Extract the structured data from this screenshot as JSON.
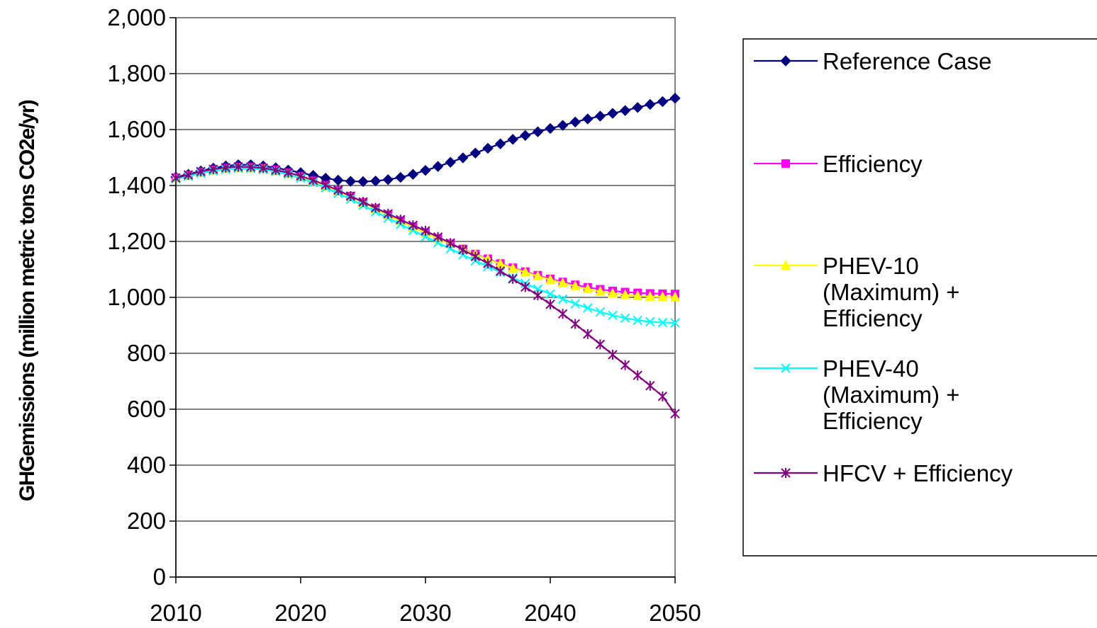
{
  "chart_data": {
    "type": "line",
    "title": "",
    "xlabel": "",
    "ylabel": "GHGemissions (million metric tons CO2e/yr)",
    "xlim": [
      2010,
      2050
    ],
    "ylim": [
      0,
      2000
    ],
    "x_ticks": [
      "2010",
      "2020",
      "2030",
      "2040",
      "2050"
    ],
    "y_ticks": [
      "0",
      "200",
      "400",
      "600",
      "800",
      "1,000",
      "1,200",
      "1,400",
      "1,600",
      "1,800",
      "2,000"
    ],
    "grid": "horizontal",
    "legend": "right",
    "x": [
      2010,
      2011,
      2012,
      2013,
      2014,
      2015,
      2016,
      2017,
      2018,
      2019,
      2020,
      2021,
      2022,
      2023,
      2024,
      2025,
      2026,
      2027,
      2028,
      2029,
      2030,
      2031,
      2032,
      2033,
      2034,
      2035,
      2036,
      2037,
      2038,
      2039,
      2040,
      2041,
      2042,
      2043,
      2044,
      2045,
      2046,
      2047,
      2048,
      2049,
      2050
    ],
    "series": [
      {
        "name": "Reference Case",
        "legend_lines": [
          "Reference Case"
        ],
        "color": "#000080",
        "marker": "diamond",
        "values": [
          1430,
          1440,
          1452,
          1462,
          1470,
          1474,
          1474,
          1470,
          1463,
          1455,
          1446,
          1436,
          1426,
          1419,
          1415,
          1414,
          1416,
          1421,
          1429,
          1440,
          1454,
          1468,
          1483,
          1499,
          1516,
          1533,
          1549,
          1565,
          1579,
          1592,
          1604,
          1615,
          1627,
          1638,
          1648,
          1658,
          1668,
          1679,
          1690,
          1700,
          1712
        ]
      },
      {
        "name": "Efficiency",
        "legend_lines": [
          "Efficiency"
        ],
        "color": "#FF00FF",
        "marker": "square",
        "values": [
          1428,
          1437,
          1448,
          1456,
          1462,
          1466,
          1466,
          1463,
          1456,
          1446,
          1433,
          1418,
          1401,
          1382,
          1362,
          1340,
          1318,
          1296,
          1274,
          1253,
          1232,
          1211,
          1192,
          1173,
          1155,
          1138,
          1121,
          1106,
          1092,
          1079,
          1066,
          1055,
          1045,
          1036,
          1029,
          1023,
          1019,
          1016,
          1014,
          1013,
          1012
        ]
      },
      {
        "name": "PHEV-10 (Maximum) + Efficiency",
        "legend_lines": [
          "PHEV-10",
          "(Maximum) +",
          "Efficiency"
        ],
        "color": "#FFFF00",
        "marker": "triangle",
        "values": [
          1426,
          1435,
          1446,
          1454,
          1460,
          1463,
          1463,
          1460,
          1453,
          1443,
          1430,
          1415,
          1398,
          1379,
          1359,
          1337,
          1316,
          1294,
          1272,
          1251,
          1231,
          1210,
          1191,
          1172,
          1154,
          1136,
          1120,
          1104,
          1090,
          1076,
          1063,
          1051,
          1040,
          1030,
          1021,
          1014,
          1009,
          1005,
          1003,
          1002,
          1001
        ]
      },
      {
        "name": "PHEV-40 (Maximum) + Efficiency",
        "legend_lines": [
          "PHEV-40",
          "(Maximum) +",
          "Efficiency"
        ],
        "color": "#00FFFF",
        "marker": "x",
        "values": [
          1424,
          1433,
          1444,
          1452,
          1458,
          1461,
          1461,
          1457,
          1450,
          1440,
          1426,
          1410,
          1392,
          1372,
          1351,
          1329,
          1306,
          1283,
          1261,
          1239,
          1217,
          1195,
          1174,
          1152,
          1131,
          1110,
          1090,
          1070,
          1050,
          1030,
          1012,
          994,
          977,
          962,
          948,
          936,
          926,
          918,
          913,
          910,
          909
        ]
      },
      {
        "name": "HFCV + Efficiency",
        "legend_lines": [
          "HFCV + Efficiency"
        ],
        "color": "#800080",
        "marker": "asterisk",
        "values": [
          1427,
          1438,
          1450,
          1458,
          1464,
          1467,
          1466,
          1462,
          1455,
          1446,
          1434,
          1419,
          1402,
          1383,
          1362,
          1341,
          1320,
          1299,
          1278,
          1258,
          1238,
          1216,
          1194,
          1170,
          1146,
          1121,
          1094,
          1066,
          1037,
          1007,
          975,
          941,
          905,
          869,
          832,
          795,
          758,
          721,
          684,
          646,
          584
        ]
      }
    ]
  }
}
